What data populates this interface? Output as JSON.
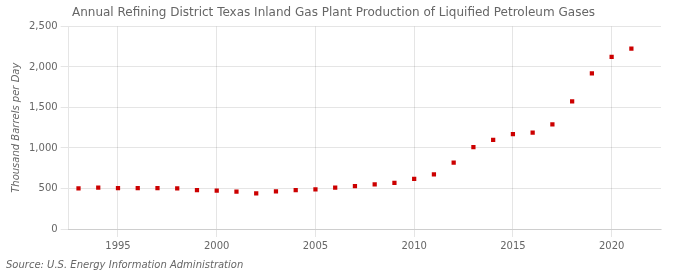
{
  "chart_data": {
    "type": "scatter",
    "title": "Annual Refining District Texas Inland Gas Plant Production of Liquified Petroleum Gases",
    "ylabel": "Thousand Barrels per Day",
    "annotations": [
      "Source: U.S. Energy Information Administration"
    ],
    "x": [
      1993,
      1994,
      1995,
      1996,
      1997,
      1998,
      1999,
      2000,
      2001,
      2002,
      2003,
      2004,
      2005,
      2006,
      2007,
      2008,
      2009,
      2010,
      2011,
      2012,
      2013,
      2014,
      2015,
      2016,
      2017,
      2018,
      2019,
      2020,
      2021
    ],
    "values": [
      500,
      510,
      505,
      505,
      505,
      500,
      480,
      475,
      460,
      440,
      465,
      480,
      490,
      510,
      530,
      550,
      570,
      620,
      675,
      820,
      1010,
      1100,
      1170,
      1190,
      1290,
      1575,
      1920,
      2125,
      2225
    ],
    "color": "#cc0000",
    "marker": "square",
    "xlim": [
      1992.5,
      2022.5
    ],
    "xticks": [
      1995,
      2000,
      2005,
      2010,
      2015,
      2020
    ],
    "ylim": [
      0,
      2500
    ],
    "yticks": [
      0,
      500,
      {
        "value": 1000,
        "label": "1,000"
      },
      {
        "value": 1500,
        "label": "1,500"
      },
      {
        "value": 2000,
        "label": "2,000"
      },
      {
        "value": 2500,
        "label": "2,500"
      }
    ],
    "grid": true
  }
}
